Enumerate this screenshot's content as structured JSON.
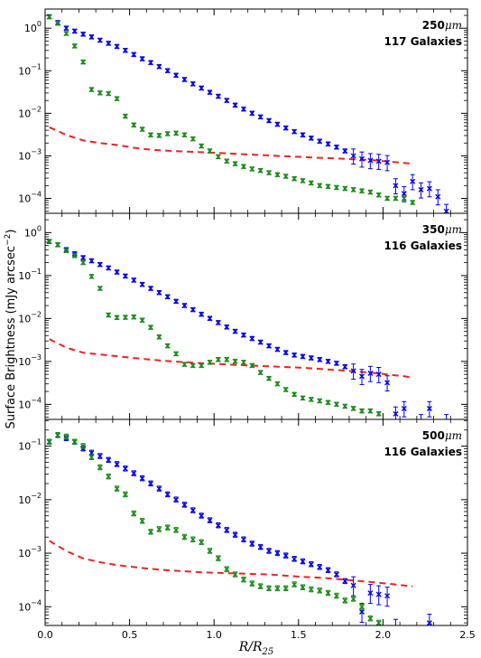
{
  "chart_data": [
    {
      "type": "scatter",
      "panel_line1": "250",
      "panel_unit": "μm",
      "panel_line2": "117 Galaxies",
      "xlim": [
        0,
        2.5
      ],
      "ylim_log10": [
        -4.35,
        0.45
      ],
      "yscale": "log",
      "series": [
        {
          "color": "#0000ee",
          "marker": "x",
          "x": [
            0.025,
            0.075,
            0.125,
            0.175,
            0.225,
            0.275,
            0.325,
            0.375,
            0.425,
            0.475,
            0.525,
            0.575,
            0.625,
            0.675,
            0.725,
            0.775,
            0.825,
            0.875,
            0.925,
            0.975,
            1.025,
            1.075,
            1.125,
            1.175,
            1.225,
            1.275,
            1.325,
            1.375,
            1.425,
            1.475,
            1.525,
            1.575,
            1.625,
            1.675,
            1.725,
            1.775,
            1.825,
            1.875,
            1.925,
            1.975,
            2.025,
            2.075,
            2.125,
            2.175,
            2.225,
            2.275,
            2.325,
            2.375
          ],
          "y": [
            1.85,
            1.35,
            1.0,
            0.85,
            0.72,
            0.62,
            0.52,
            0.44,
            0.37,
            0.3,
            0.24,
            0.19,
            0.155,
            0.125,
            0.1,
            0.078,
            0.062,
            0.049,
            0.039,
            0.031,
            0.025,
            0.02,
            0.0155,
            0.0125,
            0.01,
            0.0082,
            0.0067,
            0.0055,
            0.0045,
            0.0037,
            0.0031,
            0.0026,
            0.0022,
            0.0019,
            0.0016,
            0.0013,
            0.001,
            0.00085,
            0.00078,
            0.00075,
            0.0007,
            0.0002,
            0.00013,
            0.00025,
            0.00016,
            0.00017,
            0.00011,
            5e-05
          ]
        },
        {
          "color": "#1a8a1a",
          "marker": "x",
          "x": [
            0.025,
            0.075,
            0.125,
            0.175,
            0.225,
            0.275,
            0.325,
            0.375,
            0.425,
            0.475,
            0.525,
            0.575,
            0.625,
            0.675,
            0.725,
            0.775,
            0.825,
            0.875,
            0.925,
            0.975,
            1.025,
            1.075,
            1.125,
            1.175,
            1.225,
            1.275,
            1.325,
            1.375,
            1.425,
            1.475,
            1.525,
            1.575,
            1.625,
            1.675,
            1.725,
            1.775,
            1.825,
            1.875,
            1.925,
            1.975,
            2.025,
            2.075,
            2.125,
            2.175
          ],
          "y": [
            1.85,
            1.3,
            0.75,
            0.38,
            0.16,
            0.036,
            0.03,
            0.029,
            0.022,
            0.0085,
            0.0053,
            0.0042,
            0.0031,
            0.003,
            0.0033,
            0.0034,
            0.0031,
            0.0025,
            0.0017,
            0.0013,
            0.00095,
            0.00075,
            0.00065,
            0.00056,
            0.00049,
            0.00045,
            0.0004,
            0.00036,
            0.00033,
            0.00029,
            0.00026,
            0.00023,
            0.0002,
            0.00019,
            0.00018,
            0.00017,
            0.00016,
            0.00015,
            0.00014,
            0.00012,
            0.0001,
            0.0001,
            0.0001,
            8e-05
          ]
        }
      ],
      "dashed_line": {
        "color": "#ee2222",
        "x": [
          0.025,
          0.125,
          0.225,
          0.325,
          0.425,
          0.525,
          0.625,
          0.725,
          0.825,
          0.925,
          1.025,
          1.125,
          1.225,
          1.325,
          1.425,
          1.525,
          1.625,
          1.725,
          1.825,
          1.925,
          2.025,
          2.125,
          2.175
        ],
        "y": [
          0.0047,
          0.0031,
          0.0023,
          0.002,
          0.0018,
          0.00155,
          0.0014,
          0.00132,
          0.00127,
          0.00122,
          0.00117,
          0.00112,
          0.00107,
          0.00102,
          0.00098,
          0.00094,
          0.0009,
          0.00087,
          0.00083,
          0.0008,
          0.00074,
          0.00068,
          0.00065
        ]
      }
    },
    {
      "type": "scatter",
      "panel_line1": "350",
      "panel_unit": "μm",
      "panel_line2": "116 Galaxies",
      "xlim": [
        0,
        2.5
      ],
      "ylim_log10": [
        -4.35,
        0.45
      ],
      "yscale": "log",
      "series": [
        {
          "color": "#0000ee",
          "marker": "x",
          "x": [
            0.025,
            0.075,
            0.125,
            0.175,
            0.225,
            0.275,
            0.325,
            0.375,
            0.425,
            0.475,
            0.525,
            0.575,
            0.625,
            0.675,
            0.725,
            0.775,
            0.825,
            0.875,
            0.925,
            0.975,
            1.025,
            1.075,
            1.125,
            1.175,
            1.225,
            1.275,
            1.325,
            1.375,
            1.425,
            1.475,
            1.525,
            1.575,
            1.625,
            1.675,
            1.725,
            1.775,
            1.825,
            1.875,
            1.925,
            1.975,
            2.025,
            2.075,
            2.125,
            2.175,
            2.225,
            2.275,
            2.325,
            2.375
          ],
          "y": [
            0.62,
            0.52,
            0.4,
            0.32,
            0.26,
            0.22,
            0.18,
            0.15,
            0.12,
            0.097,
            0.078,
            0.062,
            0.05,
            0.04,
            0.032,
            0.025,
            0.02,
            0.016,
            0.0125,
            0.01,
            0.008,
            0.0063,
            0.005,
            0.0041,
            0.0034,
            0.0028,
            0.0023,
            0.0019,
            0.0016,
            0.0014,
            0.0013,
            0.0012,
            0.0011,
            0.001,
            0.0009,
            0.00075,
            0.0006,
            0.00045,
            0.00053,
            0.0005,
            0.00032,
            6e-05,
            8e-05,
            3e-05,
            4e-05,
            8e-05,
            2e-05,
            4e-05
          ]
        },
        {
          "color": "#1a8a1a",
          "marker": "x",
          "x": [
            0.025,
            0.075,
            0.125,
            0.175,
            0.225,
            0.275,
            0.325,
            0.375,
            0.425,
            0.475,
            0.525,
            0.575,
            0.625,
            0.675,
            0.725,
            0.775,
            0.825,
            0.875,
            0.925,
            0.975,
            1.025,
            1.075,
            1.125,
            1.175,
            1.225,
            1.275,
            1.325,
            1.375,
            1.425,
            1.475,
            1.525,
            1.575,
            1.625,
            1.675,
            1.725,
            1.775,
            1.825,
            1.875,
            1.925,
            1.975
          ],
          "y": [
            0.62,
            0.52,
            0.38,
            0.29,
            0.2,
            0.095,
            0.05,
            0.012,
            0.0105,
            0.0106,
            0.0108,
            0.0091,
            0.0062,
            0.0037,
            0.0023,
            0.0015,
            0.00085,
            0.0008,
            0.0008,
            0.00095,
            0.0011,
            0.0011,
            0.001,
            0.00095,
            0.0008,
            0.00055,
            0.0004,
            0.0003,
            0.00022,
            0.00017,
            0.00014,
            0.00013,
            0.00012,
            0.00011,
            0.0001,
            9e-05,
            8e-05,
            7e-05,
            7e-05,
            6e-05
          ]
        }
      ],
      "dashed_line": {
        "color": "#ee2222",
        "x": [
          0.025,
          0.125,
          0.225,
          0.325,
          0.425,
          0.525,
          0.625,
          0.725,
          0.825,
          0.925,
          1.025,
          1.125,
          1.225,
          1.325,
          1.425,
          1.525,
          1.625,
          1.725,
          1.825,
          1.925,
          2.025,
          2.125,
          2.175
        ],
        "y": [
          0.0033,
          0.0021,
          0.0016,
          0.00145,
          0.00132,
          0.0012,
          0.0011,
          0.00102,
          0.00096,
          0.00091,
          0.00087,
          0.00083,
          0.0008,
          0.00077,
          0.00074,
          0.00071,
          0.00067,
          0.00063,
          0.00059,
          0.00055,
          0.0005,
          0.00045,
          0.00042
        ]
      }
    },
    {
      "type": "scatter",
      "panel_line1": "500",
      "panel_unit": "μm",
      "panel_line2": "116 Galaxies",
      "xlim": [
        0,
        2.5
      ],
      "ylim_log10": [
        -4.35,
        -0.5
      ],
      "yscale": "log",
      "series": [
        {
          "color": "#0000ee",
          "marker": "x",
          "x": [
            0.025,
            0.075,
            0.125,
            0.175,
            0.225,
            0.275,
            0.325,
            0.375,
            0.425,
            0.475,
            0.525,
            0.575,
            0.625,
            0.675,
            0.725,
            0.775,
            0.825,
            0.875,
            0.925,
            0.975,
            1.025,
            1.075,
            1.125,
            1.175,
            1.225,
            1.275,
            1.325,
            1.375,
            1.425,
            1.475,
            1.525,
            1.575,
            1.625,
            1.675,
            1.725,
            1.775,
            1.825,
            1.875,
            1.925,
            1.975,
            2.025,
            2.075,
            2.125,
            2.175,
            2.225,
            2.275,
            2.325,
            2.375
          ],
          "y": [
            0.12,
            0.16,
            0.14,
            0.12,
            0.09,
            0.075,
            0.065,
            0.055,
            0.046,
            0.038,
            0.031,
            0.025,
            0.02,
            0.016,
            0.0125,
            0.01,
            0.008,
            0.0063,
            0.005,
            0.0041,
            0.0033,
            0.0027,
            0.0022,
            0.0018,
            0.0015,
            0.0013,
            0.0011,
            0.001,
            0.0009,
            0.00078,
            0.0007,
            0.00062,
            0.00055,
            0.00048,
            0.0004,
            0.0003,
            0.00025,
            8e-05,
            0.00018,
            0.00017,
            0.00016,
            4e-05,
            3e-05,
            2e-05,
            3e-05,
            5e-05,
            2e-05,
            3e-05
          ]
        },
        {
          "color": "#1a8a1a",
          "marker": "x",
          "x": [
            0.025,
            0.075,
            0.125,
            0.175,
            0.225,
            0.275,
            0.325,
            0.375,
            0.425,
            0.475,
            0.525,
            0.575,
            0.625,
            0.675,
            0.725,
            0.775,
            0.825,
            0.875,
            0.925,
            0.975,
            1.025,
            1.075,
            1.125,
            1.175,
            1.225,
            1.275,
            1.325,
            1.375,
            1.425,
            1.475,
            1.525,
            1.575,
            1.625,
            1.675,
            1.725,
            1.775,
            1.825,
            1.875,
            1.925,
            1.975
          ],
          "y": [
            0.12,
            0.16,
            0.15,
            0.12,
            0.1,
            0.062,
            0.04,
            0.027,
            0.016,
            0.0125,
            0.0055,
            0.004,
            0.0025,
            0.0028,
            0.003,
            0.0027,
            0.002,
            0.0018,
            0.0016,
            0.0011,
            0.0008,
            0.0005,
            0.0004,
            0.00032,
            0.00027,
            0.00024,
            0.00022,
            0.00022,
            0.00022,
            0.00026,
            0.00023,
            0.00021,
            0.0002,
            0.00018,
            0.00016,
            0.00013,
            0.00014,
            0.0001,
            6e-05,
            5e-05
          ]
        }
      ],
      "dashed_line": {
        "color": "#ee2222",
        "x": [
          0.025,
          0.125,
          0.225,
          0.325,
          0.425,
          0.525,
          0.625,
          0.725,
          0.825,
          0.925,
          1.025,
          1.125,
          1.225,
          1.325,
          1.425,
          1.525,
          1.625,
          1.725,
          1.825,
          1.925,
          2.025,
          2.125,
          2.175
        ],
        "y": [
          0.0017,
          0.0011,
          0.0008,
          0.00068,
          0.0006,
          0.00055,
          0.00051,
          0.00048,
          0.00046,
          0.00044,
          0.00043,
          0.00042,
          0.00041,
          0.0004,
          0.00038,
          0.00036,
          0.00035,
          0.00033,
          0.00031,
          0.00029,
          0.00027,
          0.00025,
          0.00024
        ]
      }
    }
  ],
  "axes": {
    "y_title": "Surface Brightness (mJy arcsec",
    "y_title_sup": "−2",
    "y_title_close": ")",
    "x_title_main": "R/R",
    "x_title_sub": "25",
    "x_ticks": [
      "0.0",
      "0.5",
      "1.0",
      "1.5",
      "2.0",
      "2.5"
    ],
    "x_tick_values": [
      0,
      0.5,
      1.0,
      1.5,
      2.0,
      2.5
    ],
    "y_tick_exponents": [
      [
        0,
        -1,
        -2,
        -3,
        -4
      ],
      [
        0,
        -1,
        -2,
        -3,
        -4
      ],
      [
        -1,
        -2,
        -3,
        -4
      ]
    ],
    "y_tick_base": "10"
  }
}
